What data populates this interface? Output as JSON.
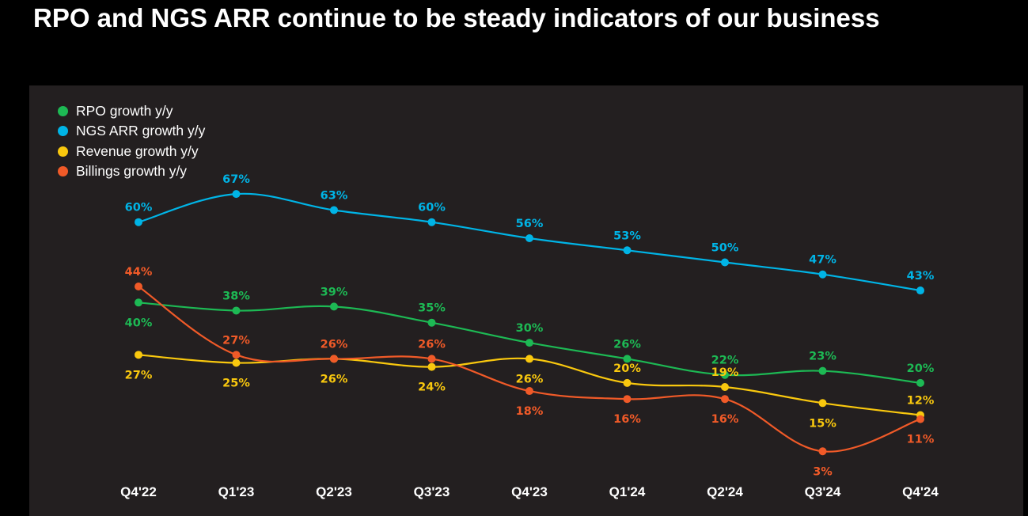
{
  "page": {
    "title": "RPO and NGS ARR continue to be steady indicators of our business"
  },
  "colors": {
    "background": "#000000",
    "panel": "#231f20",
    "text": "#ffffff"
  },
  "chart_data": {
    "type": "line",
    "title": "",
    "xlabel": "",
    "ylabel": "",
    "categories": [
      "Q4'22",
      "Q1'23",
      "Q2'23",
      "Q3'23",
      "Q4'23",
      "Q1'24",
      "Q2'24",
      "Q3'24",
      "Q4'24"
    ],
    "grid": false,
    "legend_position": "top-left",
    "series": [
      {
        "name": "RPO growth y/y",
        "color": "#1db954",
        "values": [
          40,
          38,
          39,
          35,
          30,
          26,
          22,
          23,
          20
        ],
        "labels": [
          "40%",
          "38%",
          "39%",
          "35%",
          "30%",
          "26%",
          "22%",
          "23%",
          "20%"
        ]
      },
      {
        "name": "NGS ARR growth y/y",
        "color": "#00b4e6",
        "values": [
          60,
          67,
          63,
          60,
          56,
          53,
          50,
          47,
          43
        ],
        "labels": [
          "60%",
          "67%",
          "63%",
          "60%",
          "56%",
          "53%",
          "50%",
          "47%",
          "43%"
        ]
      },
      {
        "name": "Revenue growth y/y",
        "color": "#f9c80e",
        "values": [
          27,
          25,
          26,
          24,
          26,
          20,
          19,
          15,
          12
        ],
        "labels": [
          "27%",
          "25%",
          "26%",
          "24%",
          "26%",
          "20%",
          "19%",
          "15%",
          "12%"
        ]
      },
      {
        "name": "Billings growth y/y",
        "color": "#f05a28",
        "values": [
          44,
          27,
          26,
          26,
          18,
          16,
          16,
          3,
          11
        ],
        "labels": [
          "44%",
          "27%",
          "26%",
          "26%",
          "18%",
          "16%",
          "16%",
          "3%",
          "11%"
        ]
      }
    ]
  }
}
